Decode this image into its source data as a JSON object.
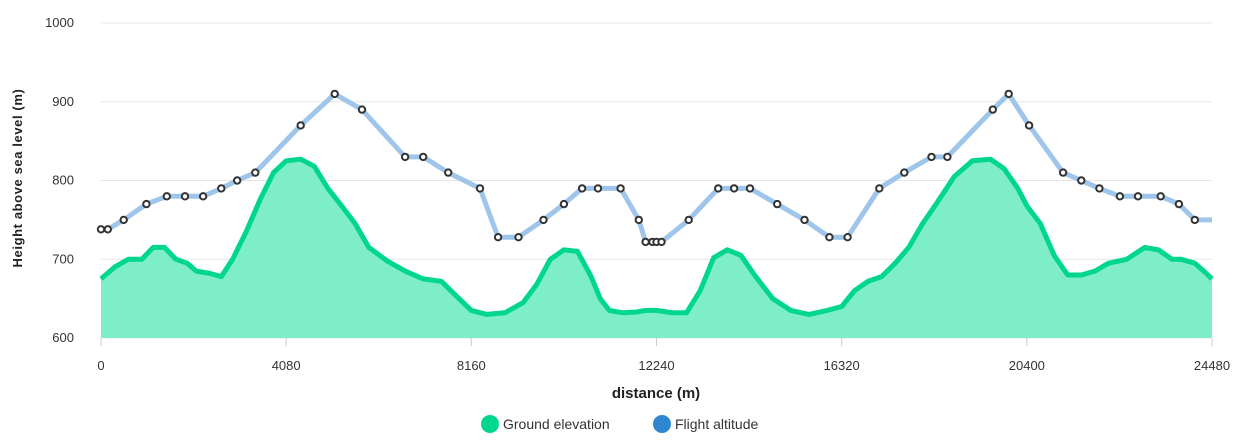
{
  "chart_data": {
    "type": "area",
    "title": "",
    "xlabel": "distance (m)",
    "ylabel": "Height above sea level (m)",
    "xlim": [
      0,
      24480
    ],
    "ylim": [
      600,
      1000
    ],
    "x_ticks": [
      0,
      4080,
      8160,
      12240,
      16320,
      20400,
      24480
    ],
    "y_ticks": [
      600,
      700,
      800,
      900,
      1000
    ],
    "grid": true,
    "legend_position": "bottom-center",
    "series": [
      {
        "name": "Ground elevation",
        "style": "filled-area",
        "color": "#00d68f",
        "fill": "#7eeec8",
        "x": [
          0,
          300,
          600,
          900,
          1150,
          1400,
          1650,
          1900,
          2100,
          2400,
          2650,
          2900,
          3200,
          3500,
          3800,
          4080,
          4400,
          4700,
          5000,
          5300,
          5600,
          5900,
          6300,
          6700,
          7100,
          7500,
          7800,
          8160,
          8500,
          8900,
          9300,
          9600,
          9900,
          10200,
          10500,
          10800,
          11000,
          11200,
          11500,
          11800,
          12000,
          12240,
          12600,
          12900,
          13200,
          13500,
          13800,
          14100,
          14400,
          14800,
          15200,
          15600,
          16000,
          16320,
          16600,
          16900,
          17200,
          17500,
          17800,
          18100,
          18400,
          18800,
          19200,
          19600,
          19900,
          20200,
          20400,
          20700,
          21000,
          21300,
          21600,
          21900,
          22200,
          22600,
          23000,
          23300,
          23600,
          23800,
          24100,
          24300,
          24480
        ],
        "values": [
          675,
          690,
          700,
          700,
          715,
          715,
          700,
          695,
          685,
          682,
          678,
          700,
          735,
          775,
          810,
          825,
          827,
          818,
          790,
          768,
          745,
          715,
          698,
          685,
          675,
          672,
          655,
          635,
          630,
          632,
          645,
          668,
          700,
          712,
          710,
          678,
          650,
          635,
          632,
          633,
          635,
          635,
          632,
          632,
          660,
          702,
          712,
          705,
          680,
          650,
          635,
          630,
          635,
          640,
          660,
          672,
          678,
          695,
          715,
          745,
          770,
          805,
          825,
          827,
          815,
          790,
          768,
          745,
          705,
          680,
          680,
          685,
          695,
          700,
          715,
          712,
          700,
          700,
          695,
          685,
          675
        ]
      },
      {
        "name": "Flight altitude",
        "style": "line-with-markers",
        "color": "#2f86cf",
        "line_color": "#9fc6ea",
        "x": [
          0,
          150,
          500,
          1000,
          1450,
          1850,
          2250,
          2650,
          3000,
          3400,
          4400,
          5150,
          5750,
          6700,
          7100,
          7650,
          8350,
          8750,
          9200,
          9750,
          10200,
          10600,
          10950,
          11450,
          11850,
          12000,
          12150,
          12240,
          12350,
          12950,
          13600,
          13950,
          14300,
          14900,
          15500,
          16050,
          16450,
          17150,
          17700,
          18300,
          18650,
          19650,
          20000,
          20450,
          21200,
          21600,
          22000,
          22450,
          22850,
          23350,
          23750,
          24100,
          24480
        ],
        "values": [
          738,
          738,
          750,
          770,
          780,
          780,
          780,
          790,
          800,
          810,
          870,
          910,
          890,
          830,
          830,
          810,
          790,
          728,
          728,
          750,
          770,
          790,
          790,
          790,
          750,
          722,
          722,
          722,
          722,
          750,
          790,
          790,
          790,
          770,
          750,
          728,
          728,
          790,
          810,
          830,
          830,
          890,
          910,
          870,
          810,
          800,
          790,
          780,
          780,
          780,
          770,
          750,
          750
        ]
      }
    ]
  }
}
